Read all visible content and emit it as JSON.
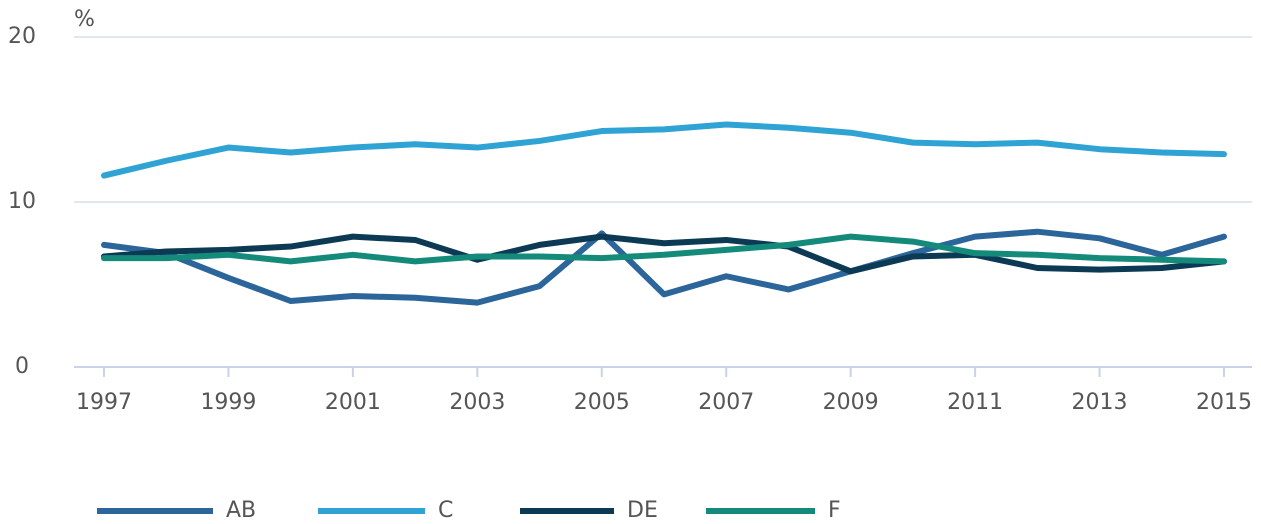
{
  "chart_data": {
    "type": "line",
    "y_label": "%",
    "x": [
      1997,
      1998,
      1999,
      2000,
      2001,
      2002,
      2003,
      2004,
      2005,
      2006,
      2007,
      2008,
      2009,
      2010,
      2011,
      2012,
      2013,
      2014,
      2015
    ],
    "series": [
      {
        "name": "AB",
        "color": "#2b659a",
        "values": [
          7.4,
          6.9,
          5.4,
          4.0,
          4.3,
          4.2,
          3.9,
          4.9,
          8.1,
          4.4,
          5.5,
          4.7,
          5.8,
          6.9,
          7.9,
          8.2,
          7.8,
          6.8,
          7.9
        ]
      },
      {
        "name": "C",
        "color": "#2ea3d4",
        "values": [
          11.6,
          12.5,
          13.3,
          13.0,
          13.3,
          13.5,
          13.3,
          13.7,
          14.3,
          14.4,
          14.7,
          14.5,
          14.2,
          13.6,
          13.5,
          13.6,
          13.2,
          13.0,
          12.9
        ]
      },
      {
        "name": "DE",
        "color": "#0c3a55",
        "values": [
          6.7,
          7.0,
          7.1,
          7.3,
          7.9,
          7.7,
          6.5,
          7.4,
          7.9,
          7.5,
          7.7,
          7.3,
          5.8,
          6.7,
          6.8,
          6.0,
          5.9,
          6.0,
          6.4
        ]
      },
      {
        "name": "F",
        "color": "#148a7a",
        "values": [
          6.6,
          6.6,
          6.8,
          6.4,
          6.8,
          6.4,
          6.7,
          6.7,
          6.6,
          6.8,
          7.1,
          7.4,
          7.9,
          7.6,
          6.9,
          6.8,
          6.6,
          6.5,
          6.4
        ]
      }
    ],
    "xlim": [
      1997,
      2015
    ],
    "xticks": [
      1997,
      1999,
      2001,
      2003,
      2005,
      2007,
      2009,
      2011,
      2013,
      2015
    ],
    "ylim": [
      0,
      20
    ],
    "yticks": [
      0,
      10,
      20
    ],
    "grid": true,
    "legend": "bottom"
  }
}
